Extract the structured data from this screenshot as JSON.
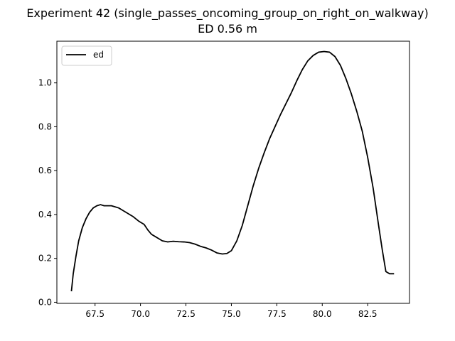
{
  "chart_data": {
    "type": "line",
    "title_lines": [
      "Experiment 42 (single_passes_oncoming_group_on_right_on_walkway)",
      "ED 0.56 m"
    ],
    "xlabel": "",
    "ylabel": "",
    "xlim": [
      65.4,
      84.8
    ],
    "ylim": [
      -0.005,
      1.19
    ],
    "x_ticks": [
      67.5,
      70.0,
      72.5,
      75.0,
      77.5,
      80.0,
      82.5
    ],
    "x_tick_labels": [
      "67.5",
      "70.0",
      "72.5",
      "75.0",
      "77.5",
      "80.0",
      "82.5"
    ],
    "y_ticks": [
      0.0,
      0.2,
      0.4,
      0.6,
      0.8,
      1.0
    ],
    "y_tick_labels": [
      "0.0",
      "0.2",
      "0.4",
      "0.6",
      "0.8",
      "1.0"
    ],
    "grid": false,
    "legend_position": "upper left",
    "series": [
      {
        "name": "ed",
        "color": "#000000",
        "x": [
          66.2,
          66.3,
          66.45,
          66.6,
          66.8,
          67.0,
          67.2,
          67.4,
          67.6,
          67.8,
          68.0,
          68.2,
          68.4,
          68.6,
          68.8,
          69.0,
          69.3,
          69.6,
          69.9,
          70.2,
          70.4,
          70.6,
          70.8,
          71.0,
          71.2,
          71.5,
          71.8,
          72.1,
          72.4,
          72.7,
          73.0,
          73.3,
          73.6,
          73.9,
          74.2,
          74.5,
          74.75,
          75.0,
          75.3,
          75.6,
          75.9,
          76.2,
          76.5,
          76.8,
          77.1,
          77.4,
          77.7,
          78.0,
          78.3,
          78.6,
          78.9,
          79.2,
          79.5,
          79.8,
          80.1,
          80.4,
          80.7,
          81.0,
          81.3,
          81.6,
          81.9,
          82.2,
          82.5,
          82.8,
          83.1,
          83.3,
          83.5,
          83.7,
          83.85,
          83.95
        ],
        "y": [
          0.05,
          0.13,
          0.21,
          0.28,
          0.34,
          0.38,
          0.41,
          0.43,
          0.44,
          0.445,
          0.44,
          0.44,
          0.44,
          0.435,
          0.43,
          0.42,
          0.405,
          0.39,
          0.37,
          0.355,
          0.33,
          0.31,
          0.3,
          0.29,
          0.28,
          0.275,
          0.278,
          0.276,
          0.275,
          0.272,
          0.265,
          0.255,
          0.248,
          0.238,
          0.225,
          0.22,
          0.222,
          0.235,
          0.28,
          0.35,
          0.44,
          0.53,
          0.61,
          0.68,
          0.745,
          0.8,
          0.855,
          0.905,
          0.955,
          1.01,
          1.06,
          1.1,
          1.125,
          1.14,
          1.143,
          1.14,
          1.12,
          1.08,
          1.02,
          0.95,
          0.87,
          0.78,
          0.66,
          0.52,
          0.35,
          0.24,
          0.14,
          0.13,
          0.13,
          0.13
        ]
      }
    ]
  }
}
